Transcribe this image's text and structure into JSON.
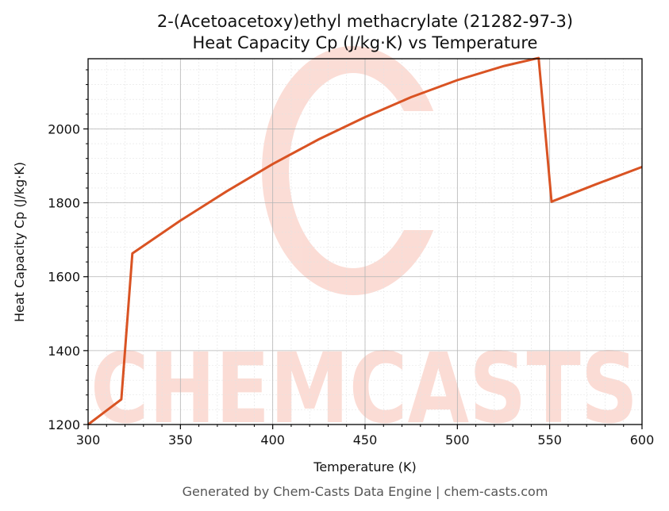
{
  "chart_data": {
    "type": "line",
    "title": "2-(Acetoacetoxy)ethyl methacrylate (21282-97-3)",
    "subtitle": "Heat Capacity Cp (J/kg·K) vs Temperature",
    "xlabel": "Temperature (K)",
    "ylabel": "Heat Capacity Cp (J/kg·K)",
    "xlim": [
      300,
      600
    ],
    "ylim": [
      1200,
      2190
    ],
    "xticks": [
      300,
      350,
      400,
      450,
      500,
      550,
      600
    ],
    "yticks": [
      1200,
      1400,
      1600,
      1800,
      2000
    ],
    "grid": true,
    "series": [
      {
        "color": "#d95323",
        "x": [
          300,
          318,
          324,
          350,
          375,
          400,
          425,
          450,
          475,
          500,
          525,
          544,
          551,
          575,
          600
        ],
        "y": [
          1200,
          1268,
          1663,
          1752,
          1831,
          1905,
          1972,
          2032,
          2086,
          2132,
          2170,
          2192,
          1803,
          1850,
          1897
        ]
      }
    ]
  },
  "watermark": {
    "text": "CHEMCASTS",
    "color": "#fbd9d1"
  },
  "footer": "Generated by Chem-Casts Data Engine | chem-casts.com"
}
